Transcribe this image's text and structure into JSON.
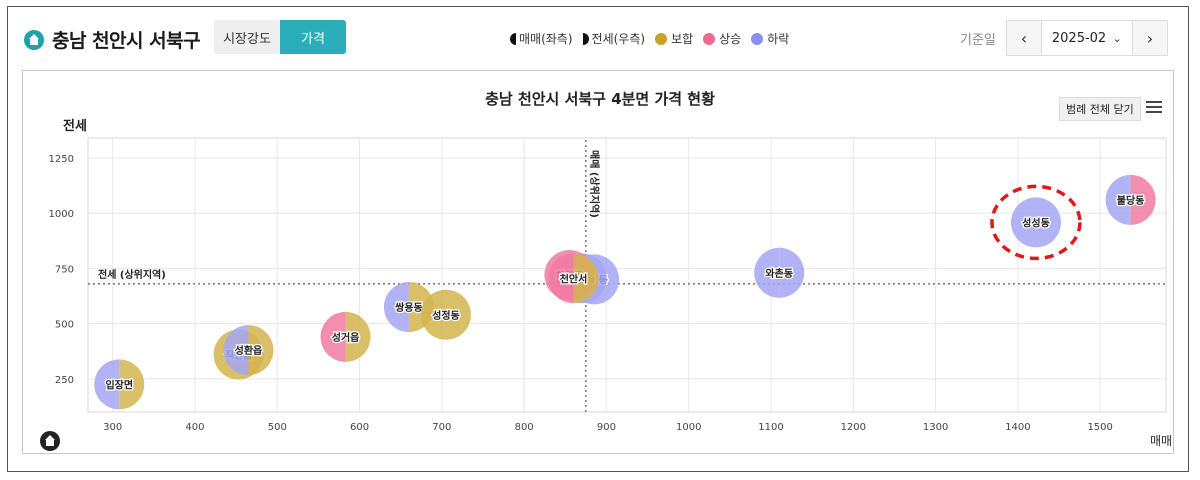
{
  "header": {
    "title": "충남 천안시 서북구",
    "toggle": {
      "off_label": "시장강도",
      "on_label": "가격"
    },
    "legend": [
      {
        "kind": "half-left",
        "label": "매매(좌측)",
        "color": "#111111"
      },
      {
        "kind": "half-right",
        "label": "전세(우측)",
        "color": "#111111"
      },
      {
        "kind": "dot",
        "label": "보합",
        "color": "#c9a227"
      },
      {
        "kind": "dot",
        "label": "상승",
        "color": "#ef6a8e"
      },
      {
        "kind": "dot",
        "label": "하락",
        "color": "#8b8ef0"
      }
    ],
    "date_label": "기준일",
    "date_value": "2025-02",
    "prev_icon": "chevron-left-icon",
    "next_icon": "chevron-right-icon",
    "dropdown_icon": "chevron-down-icon"
  },
  "chart_controls": {
    "legend_close_label": "범례 전체 닫기",
    "menu_icon": "hamburger-menu-icon"
  },
  "chart_data": {
    "type": "scatter",
    "title": "충남 천안시 서북구 4분면 가격 현황",
    "xlabel": "매매",
    "ylabel": "전세",
    "xlim": [
      270,
      1580
    ],
    "ylim": [
      100,
      1340
    ],
    "xticks": [
      300,
      400,
      500,
      600,
      700,
      800,
      900,
      1000,
      1100,
      1200,
      1300,
      1400,
      1500
    ],
    "yticks": [
      250,
      500,
      750,
      1000,
      1250
    ],
    "grid": true,
    "reference_lines": [
      {
        "axis": "x",
        "value": 875,
        "label": "매매 (상위지역)"
      },
      {
        "axis": "y",
        "value": 680,
        "label": "전세 (상위지역)"
      }
    ],
    "colors": {
      "보합": "#d4b44f",
      "상승": "#f27aa0",
      "하락": "#a3a6f2"
    },
    "points": [
      {
        "name": "입장면",
        "x": 308,
        "y": 225,
        "sale": "하락",
        "rent": "보합",
        "highlight": false
      },
      {
        "name": "직산읍",
        "x": 453,
        "y": 360,
        "sale": "보합",
        "rent": "보합",
        "highlight": false
      },
      {
        "name": "성환읍",
        "x": 465,
        "y": 380,
        "sale": "하락",
        "rent": "보합",
        "highlight": false
      },
      {
        "name": "성거읍",
        "x": 583,
        "y": 440,
        "sale": "상승",
        "rent": "보합",
        "highlight": false
      },
      {
        "name": "쌍용동",
        "x": 660,
        "y": 575,
        "sale": "하락",
        "rent": "보합",
        "highlight": false
      },
      {
        "name": "성정동",
        "x": 705,
        "y": 540,
        "sale": "보합",
        "rent": "보합",
        "highlight": false
      },
      {
        "name": "백석동",
        "x": 885,
        "y": 700,
        "sale": "하락",
        "rent": "하락",
        "highlight": false
      },
      {
        "name": "두정동",
        "x": 870,
        "y": 705,
        "sale": "하락",
        "rent": "하락",
        "highlight": false
      },
      {
        "name": "차암동",
        "x": 855,
        "y": 720,
        "sale": "상승",
        "rent": "상승",
        "highlight": false
      },
      {
        "name": "천안서",
        "x": 860,
        "y": 705,
        "sale": "상승",
        "rent": "보합",
        "highlight": false
      },
      {
        "name": "와촌동",
        "x": 1110,
        "y": 730,
        "sale": "하락",
        "rent": "하락",
        "highlight": false
      },
      {
        "name": "성성동",
        "x": 1422,
        "y": 958,
        "sale": "하락",
        "rent": "하락",
        "highlight": true
      },
      {
        "name": "불당동",
        "x": 1537,
        "y": 1060,
        "sale": "하락",
        "rent": "상승",
        "highlight": false
      }
    ]
  }
}
